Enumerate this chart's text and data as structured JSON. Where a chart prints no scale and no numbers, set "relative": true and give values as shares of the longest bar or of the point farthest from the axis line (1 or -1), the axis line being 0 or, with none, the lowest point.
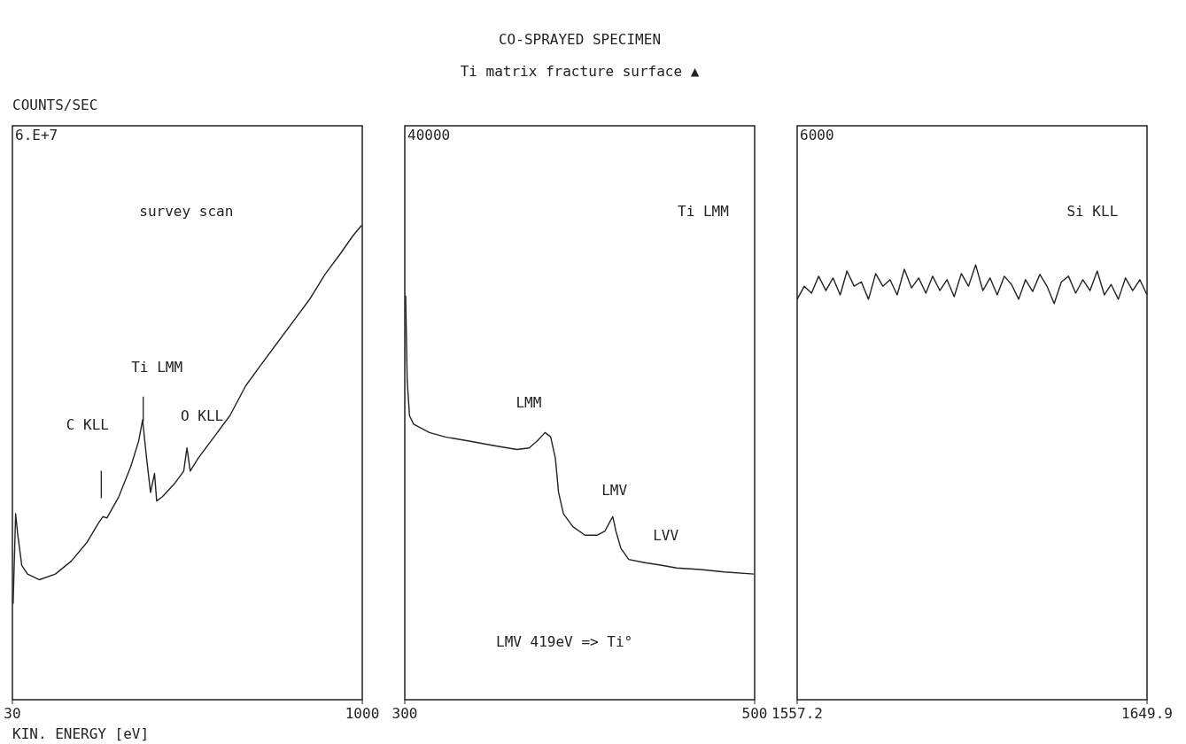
{
  "chart_data": [
    {
      "type": "line",
      "ylabel": "COUNTS/SEC",
      "xlabel": "KIN. ENERGY [eV]",
      "relative": true,
      "color": "#222222",
      "xlim": [
        30,
        1000
      ],
      "xticks": [
        30,
        1000
      ],
      "x": [
        32,
        39,
        45,
        56,
        72,
        105,
        149,
        193,
        237,
        270,
        281,
        292,
        325,
        358,
        380,
        391,
        402,
        413,
        424,
        430,
        446,
        479,
        505,
        514,
        523,
        545,
        589,
        633,
        677,
        721,
        765,
        809,
        853,
        897,
        941,
        974,
        998
      ],
      "values": [
        0.202,
        0.392,
        0.347,
        0.283,
        0.265,
        0.253,
        0.265,
        0.292,
        0.332,
        0.374,
        0.386,
        0.383,
        0.428,
        0.491,
        0.545,
        0.59,
        0.509,
        0.437,
        0.477,
        0.419,
        0.428,
        0.455,
        0.482,
        0.531,
        0.482,
        0.509,
        0.554,
        0.599,
        0.662,
        0.708,
        0.753,
        0.798,
        0.843,
        0.897,
        0.942,
        0.978,
        1
      ],
      "annotations": [
        "6.E+7",
        "survey scan",
        "Ti LMM",
        "O KLL",
        "C KLL"
      ]
    },
    {
      "type": "line",
      "title": "CO-SPRAYED SPECIMEN",
      "subtitle": "Ti matrix fracture surface ▲",
      "relative": true,
      "color": "#222222",
      "xlim": [
        300,
        500
      ],
      "xticks": [
        300,
        500
      ],
      "x": [
        300.5,
        301.4,
        302.7,
        305.0,
        314.1,
        323.2,
        336.9,
        350.6,
        364.2,
        371.1,
        375.6,
        380.2,
        383.4,
        386.1,
        387.9,
        390.7,
        396.1,
        403.0,
        409.8,
        414.4,
        417.1,
        418.9,
        420.7,
        423.5,
        428.0,
        437.1,
        446.2,
        455.4,
        469.0,
        482.7,
        499.5
      ],
      "values": [
        1,
        0.788,
        0.703,
        0.682,
        0.661,
        0.65,
        0.64,
        0.629,
        0.619,
        0.623,
        0.64,
        0.661,
        0.65,
        0.597,
        0.513,
        0.46,
        0.428,
        0.407,
        0.407,
        0.417,
        0.439,
        0.453,
        0.417,
        0.375,
        0.347,
        0.339,
        0.333,
        0.326,
        0.322,
        0.316,
        0.311
      ],
      "annotations": [
        "40000",
        "Ti LMM",
        "LMM",
        "LMV",
        "LVV",
        "LMV 419eV => Ti°"
      ]
    },
    {
      "type": "line",
      "relative": true,
      "color": "#222222",
      "xlim": [
        1557.2,
        1649.9
      ],
      "xticks": [
        1557.2,
        1649.9
      ],
      "x": [
        1557.2,
        1559.1,
        1561.0,
        1562.9,
        1564.8,
        1566.7,
        1568.6,
        1570.4,
        1572.3,
        1574.2,
        1576.1,
        1578.0,
        1579.9,
        1581.8,
        1583.7,
        1585.6,
        1587.5,
        1589.4,
        1591.3,
        1593.1,
        1595.0,
        1596.9,
        1598.8,
        1600.7,
        1602.6,
        1604.5,
        1606.4,
        1608.3,
        1610.2,
        1612.1,
        1614.0,
        1615.9,
        1617.7,
        1619.6,
        1621.5,
        1623.4,
        1625.3,
        1627.2,
        1629.1,
        1631.0,
        1632.9,
        1634.8,
        1636.7,
        1638.6,
        1640.4,
        1642.3,
        1644.2,
        1646.1,
        1648.0,
        1649.9
      ],
      "values": [
        0.921,
        0.951,
        0.935,
        0.974,
        0.941,
        0.97,
        0.931,
        0.986,
        0.951,
        0.961,
        0.921,
        0.98,
        0.951,
        0.966,
        0.931,
        0.99,
        0.947,
        0.97,
        0.935,
        0.974,
        0.941,
        0.966,
        0.927,
        0.98,
        0.951,
        1,
        0.941,
        0.97,
        0.931,
        0.974,
        0.955,
        0.921,
        0.966,
        0.939,
        0.978,
        0.951,
        0.911,
        0.961,
        0.974,
        0.935,
        0.966,
        0.941,
        0.986,
        0.931,
        0.955,
        0.921,
        0.97,
        0.941,
        0.966,
        0.931
      ],
      "annotations": [
        "6000",
        "Si KLL"
      ]
    }
  ]
}
